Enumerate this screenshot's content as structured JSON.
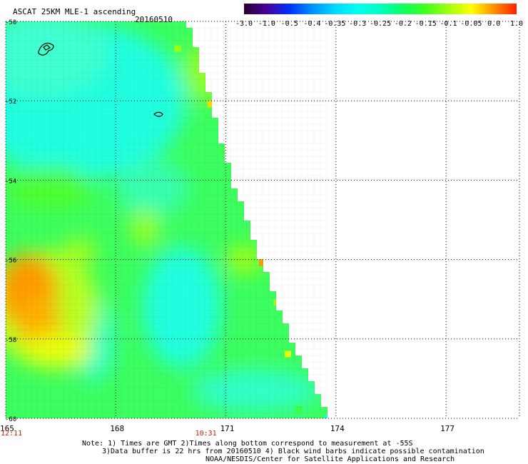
{
  "header": {
    "title": "ASCAT 25KM MLE-1 ascending",
    "date": "20160510"
  },
  "colorbar": {
    "labels": [
      "-3.0",
      "-1.0",
      "-0.5",
      "-0.4",
      "-0.35",
      "-0.3",
      "-0.25",
      "-0.2",
      "-0.15",
      "-0.1",
      "-0.05",
      "0.0",
      "1.0"
    ],
    "colors": [
      "#2a0030",
      "#4a009a",
      "#0030ff",
      "#0090ff",
      "#00d8ff",
      "#00ffee",
      "#00ffc0",
      "#10ff60",
      "#40ff20",
      "#a0ff10",
      "#ffff00",
      "#ff9000",
      "#ff2000"
    ]
  },
  "chart_data": {
    "type": "heatmap",
    "title": "ASCAT 25KM MLE-1 ascending",
    "x_ticks": [
      "165",
      "168",
      "171",
      "174",
      "177"
    ],
    "y_ticks": [
      "-50",
      "-52",
      "-54",
      "-56",
      "-58",
      "-60"
    ],
    "xlim": [
      165,
      179
    ],
    "ylim": [
      -60,
      -50
    ],
    "grid": true,
    "time_labels": [
      {
        "text": "12:11",
        "lon": 165,
        "color": "#d02000"
      },
      {
        "text": "10:31",
        "lon": 170.3,
        "color": "#d02000"
      }
    ],
    "swath_edge_lon_at_lat": [
      {
        "lat": -50,
        "lon": 170.0
      },
      {
        "lat": -52,
        "lon": 170.6
      },
      {
        "lat": -54,
        "lon": 171.2
      },
      {
        "lat": -56,
        "lon": 172.0
      },
      {
        "lat": -58,
        "lon": 172.8
      },
      {
        "lat": -60,
        "lon": 173.9
      }
    ],
    "field_regions": [
      {
        "name": "cyan",
        "value": -0.27,
        "color": "#20ffe0",
        "center": {
          "lon": 167.2,
          "lat": -52.3
        }
      },
      {
        "name": "cyan",
        "value": -0.27,
        "color": "#20ffe0",
        "center": {
          "lon": 170.0,
          "lat": -57.2
        }
      },
      {
        "name": "orange",
        "value": -0.03,
        "color": "#ff9a00",
        "center": {
          "lon": 165.7,
          "lat": -57.0
        }
      },
      {
        "name": "yellow",
        "value": -0.07,
        "color": "#e0ff20",
        "center": {
          "lon": 166.0,
          "lat": -58.1
        }
      },
      {
        "name": "green",
        "value": -0.17,
        "color": "#40ff40",
        "center": {
          "lon": 168.5,
          "lat": -55.5
        }
      }
    ],
    "notes": [
      "Note: 1) Times are GMT 2)Times along bottom correspond to measurement at -55S",
      "3)Data buffer is 22 hrs from 20160510 4) Black wind barbs indicate possible contamination",
      "NOAA/NESDIS/Center for Satellite Applications and Research"
    ]
  }
}
